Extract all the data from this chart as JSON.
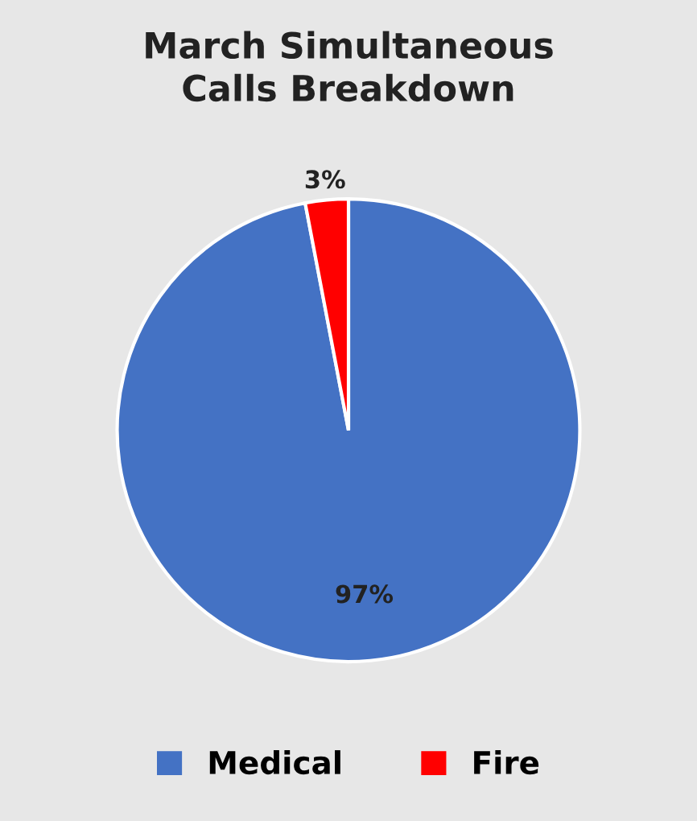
{
  "chart_data": {
    "type": "pie",
    "title": "March Simultaneous\nCalls Breakdown",
    "categories": [
      "Medical",
      "Fire"
    ],
    "values": [
      97,
      3
    ],
    "colors": [
      "#4472c4",
      "#ff0000"
    ],
    "value_labels": [
      "97%",
      "3%"
    ],
    "legend": "bottom"
  }
}
